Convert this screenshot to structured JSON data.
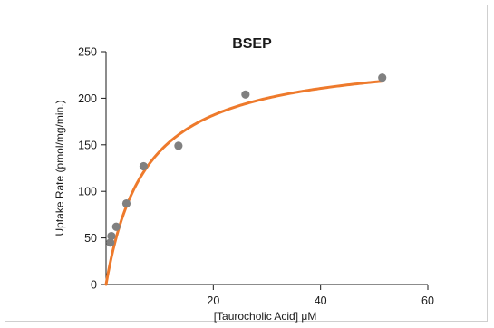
{
  "chart_data": {
    "type": "scatter",
    "title": "BSEP",
    "xlabel": "[Taurocholic Acid] μM",
    "ylabel": "Uptake Rate (pmol/mg/min.)",
    "xlim": [
      0,
      60
    ],
    "ylim": [
      0,
      250
    ],
    "xticks": [
      20,
      40,
      60
    ],
    "yticks": [
      0,
      50,
      100,
      150,
      200,
      250
    ],
    "x_tick_labels": [
      "20",
      "40",
      "60"
    ],
    "y_tick_labels": [
      "0",
      "50",
      "100",
      "150",
      "200",
      "250"
    ],
    "grid": false,
    "legend": "none",
    "series": [
      {
        "kind": "points",
        "x": [
          0.8,
          1.0,
          1.9,
          3.8,
          7.0,
          13.5,
          26.0,
          51.5
        ],
        "y": [
          45,
          52,
          62,
          87,
          127,
          149,
          204,
          222
        ],
        "color": "#808080"
      },
      {
        "kind": "fit_curve",
        "model": "michaelis-menten",
        "vmax": 250,
        "km": 7.5,
        "x_range": [
          0,
          51.5
        ],
        "color": "#ee7a2c"
      }
    ]
  }
}
